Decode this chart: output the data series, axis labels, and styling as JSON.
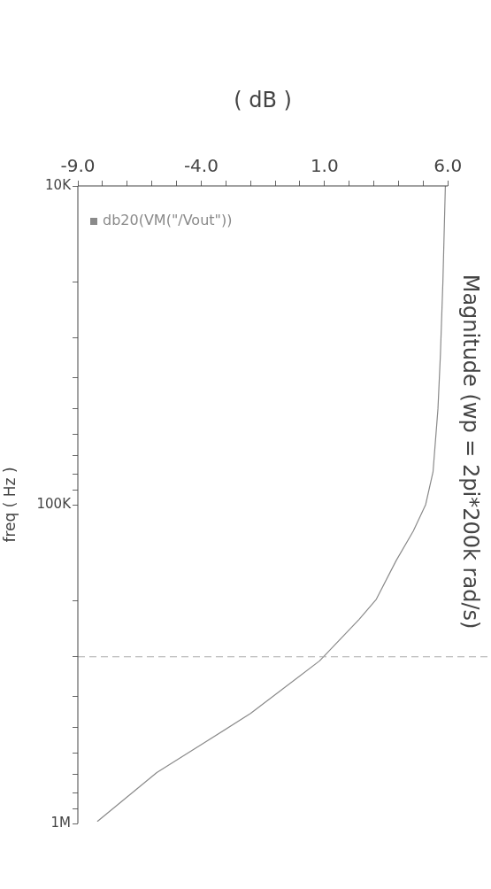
{
  "chart_data": {
    "type": "line",
    "title": "Magnitude (wp = 2pi*200k rad/s)",
    "xlabel": "( dB )",
    "ylabel": "freq ( Hz )",
    "log": "y",
    "ylim": [
      1000000,
      10000
    ],
    "yticks": [
      {
        "value": 10000,
        "label": "10K"
      },
      {
        "value": 20000,
        "label": null
      },
      {
        "value": 30000,
        "label": null
      },
      {
        "value": 40000,
        "label": null
      },
      {
        "value": 50000,
        "label": null
      },
      {
        "value": 60000,
        "label": null
      },
      {
        "value": 70000,
        "label": null
      },
      {
        "value": 80000,
        "label": null
      },
      {
        "value": 90000,
        "label": null
      },
      {
        "value": 100000,
        "label": "100K"
      },
      {
        "value": 200000,
        "label": null
      },
      {
        "value": 300000,
        "label": null
      },
      {
        "value": 400000,
        "label": null
      },
      {
        "value": 500000,
        "label": null
      },
      {
        "value": 600000,
        "label": null
      },
      {
        "value": 700000,
        "label": null
      },
      {
        "value": 800000,
        "label": null
      },
      {
        "value": 900000,
        "label": null
      },
      {
        "value": 1000000,
        "label": "1M"
      }
    ],
    "xlim": [
      -9,
      6
    ],
    "xticks": [
      {
        "value": -9,
        "label": "-9.0"
      },
      {
        "value": -8,
        "label": null
      },
      {
        "value": -7,
        "label": null
      },
      {
        "value": -6,
        "label": null
      },
      {
        "value": -5,
        "label": null
      },
      {
        "value": -4,
        "label": "-4.0"
      },
      {
        "value": -3,
        "label": null
      },
      {
        "value": -2,
        "label": null
      },
      {
        "value": -1,
        "label": null
      },
      {
        "value": 0,
        "label": null
      },
      {
        "value": 1,
        "label": "1.0"
      },
      {
        "value": 2,
        "label": null
      },
      {
        "value": 3,
        "label": null
      },
      {
        "value": 4,
        "label": null
      },
      {
        "value": 5,
        "label": null
      },
      {
        "value": 6,
        "label": "6.0"
      }
    ],
    "grid": false,
    "legend": "top left",
    "ref_lines": [
      {
        "axis": "y",
        "value": 300000,
        "color": "#aaaaaa",
        "line_style": "dashed"
      }
    ],
    "series": [
      {
        "name": "db20(VM(\"/Vout\"))",
        "color": "#8a8a8a",
        "x": [
          5.9,
          5.8,
          5.7,
          5.6,
          5.4,
          5.1,
          4.6,
          3.9,
          3.1,
          2.4,
          0.8,
          -2.0,
          -4.0,
          -5.8,
          -8.2
        ],
        "values": [
          10000,
          20000,
          33700,
          50000,
          78900,
          100000,
          121000,
          150000,
          198000,
          229000,
          309000,
          452000,
          566000,
          692000,
          984000
        ]
      }
    ]
  }
}
